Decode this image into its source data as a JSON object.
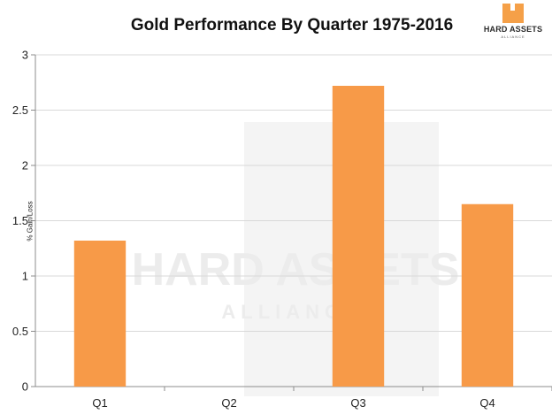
{
  "chart_data": {
    "type": "bar",
    "title": "Gold Performance By Quarter 1975-2016",
    "xlabel": "",
    "ylabel": "% Gain/Loss",
    "categories": [
      "Q1",
      "Q2",
      "Q3",
      "Q4"
    ],
    "values": [
      1.32,
      0,
      2.72,
      1.65
    ],
    "ylim": [
      0,
      3
    ],
    "yticks": [
      "0",
      "0.5",
      "1",
      "1.5",
      "2",
      "2.5",
      "3"
    ],
    "grid": true,
    "legend": "none",
    "bar_color": "#f79a48"
  },
  "logo": {
    "text": "HARD ASSETS",
    "subtext": "ALLIANCE",
    "color": "#f5a048"
  },
  "watermark": {
    "text": "HARD ASSETS",
    "subtext": "ALLIANCE"
  }
}
